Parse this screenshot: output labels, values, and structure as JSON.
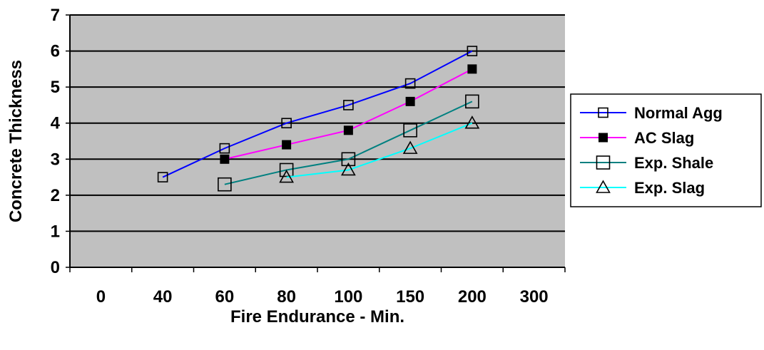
{
  "chart_data": {
    "type": "line",
    "categories": [
      "0",
      "40",
      "60",
      "80",
      "100",
      "150",
      "200",
      "300"
    ],
    "xlabel": "Fire Endurance - Min.",
    "ylabel": "Concrete Thickness",
    "ylim": [
      0,
      7
    ],
    "yticks": [
      "0",
      "1",
      "2",
      "3",
      "4",
      "5",
      "6",
      "7"
    ],
    "grid": true,
    "legend_position": "right",
    "plot_background": "#c0c0c0",
    "series": [
      {
        "name": "Normal Agg",
        "color": "#0000ff",
        "marker": "open-square-small",
        "values": [
          null,
          2.5,
          3.3,
          4.0,
          4.5,
          5.1,
          6.0,
          null
        ]
      },
      {
        "name": "AC Slag",
        "color": "#ff00ff",
        "marker": "filled-square",
        "values": [
          null,
          null,
          3.0,
          3.4,
          3.8,
          4.6,
          5.5,
          null
        ]
      },
      {
        "name": "Exp. Shale",
        "color": "#008080",
        "marker": "open-square-large",
        "values": [
          null,
          null,
          2.3,
          2.7,
          3.0,
          3.8,
          4.6,
          null
        ]
      },
      {
        "name": "Exp. Slag",
        "color": "#00ffff",
        "marker": "open-triangle",
        "values": [
          null,
          null,
          null,
          2.5,
          2.7,
          3.3,
          4.0,
          null
        ]
      }
    ]
  }
}
